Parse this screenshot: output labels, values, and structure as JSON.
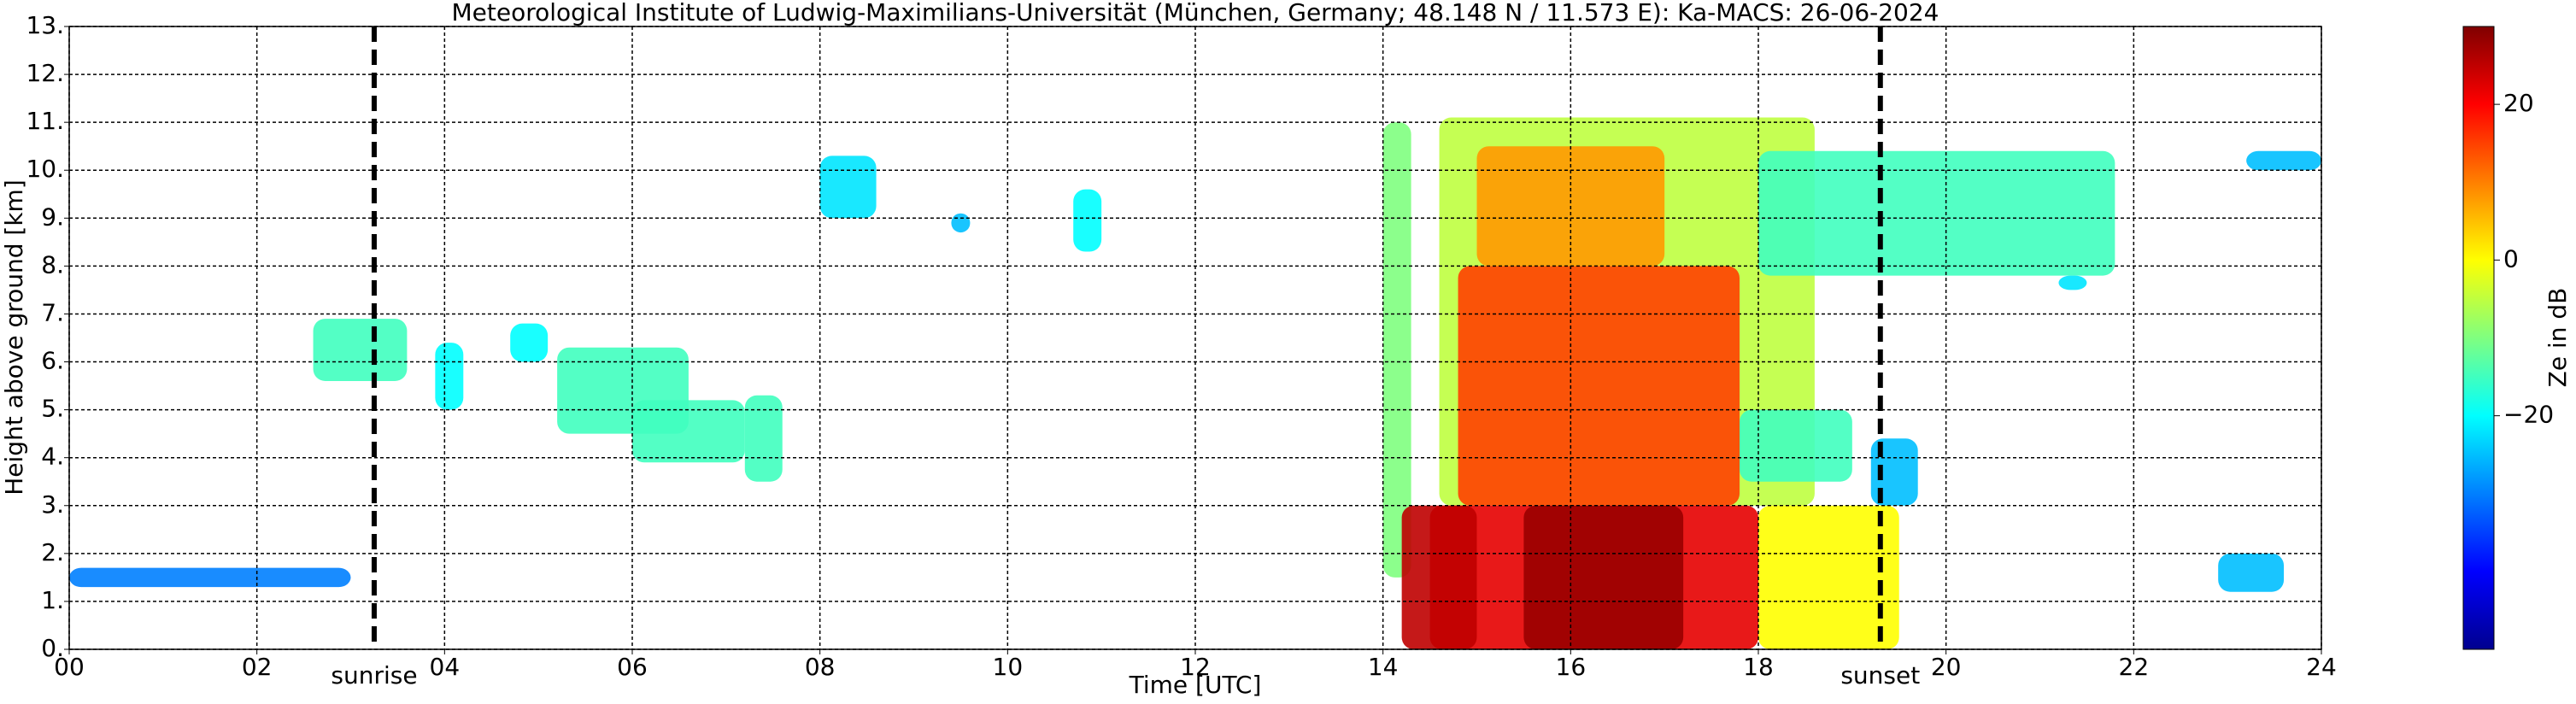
{
  "chart_data": {
    "type": "radar-timeheight",
    "title": "Meteorological Institute of Ludwig-Maximilians-Universität (München, Germany; 48.148 N / 11.573 E):    Ka-MACS: 26-06-2024",
    "xlabel": "Time [UTC]",
    "ylabel": "Height above ground [km]",
    "colorbar_label": "Ze in dB",
    "xlim": [
      0,
      24
    ],
    "xticks": [
      {
        "value": 0,
        "label": "00"
      },
      {
        "value": 2,
        "label": "02"
      },
      {
        "value": 4,
        "label": "04"
      },
      {
        "value": 6,
        "label": "06"
      },
      {
        "value": 8,
        "label": "08"
      },
      {
        "value": 10,
        "label": "10"
      },
      {
        "value": 12,
        "label": "12"
      },
      {
        "value": 14,
        "label": "14"
      },
      {
        "value": 16,
        "label": "16"
      },
      {
        "value": 18,
        "label": "18"
      },
      {
        "value": 20,
        "label": "20"
      },
      {
        "value": 22,
        "label": "22"
      },
      {
        "value": 24,
        "label": "24"
      }
    ],
    "ylim": [
      0,
      13
    ],
    "yticks": [
      {
        "value": 0,
        "label": "0."
      },
      {
        "value": 1,
        "label": "1."
      },
      {
        "value": 2,
        "label": "2."
      },
      {
        "value": 3,
        "label": "3."
      },
      {
        "value": 4,
        "label": "4."
      },
      {
        "value": 5,
        "label": "5."
      },
      {
        "value": 6,
        "label": "6."
      },
      {
        "value": 7,
        "label": "7."
      },
      {
        "value": 8,
        "label": "8."
      },
      {
        "value": 9,
        "label": "9."
      },
      {
        "value": 10,
        "label": "10."
      },
      {
        "value": 11,
        "label": "11."
      },
      {
        "value": 12,
        "label": "12."
      },
      {
        "value": 13,
        "label": "13."
      }
    ],
    "clim": [
      -50,
      30
    ],
    "cticks": [
      {
        "value": -20,
        "label": "−20"
      },
      {
        "value": 0,
        "label": "0"
      },
      {
        "value": 20,
        "label": "20"
      }
    ],
    "grid": true,
    "annotations": [
      {
        "text": "sunrise",
        "x": 3.25
      },
      {
        "text": "sunset",
        "x": 19.3
      }
    ],
    "echoes": [
      {
        "t0": 14.6,
        "t1": 18.6,
        "h0": 3.0,
        "h1": 11.1,
        "ze": -5
      },
      {
        "t0": 18.0,
        "t1": 21.8,
        "h0": 7.8,
        "h1": 10.4,
        "ze": -15
      },
      {
        "t0": 14.0,
        "t1": 14.3,
        "h0": 1.5,
        "h1": 11.0,
        "ze": -10
      },
      {
        "t0": 17.8,
        "t1": 19.0,
        "h0": 3.5,
        "h1": 5.0,
        "ze": -15
      },
      {
        "t0": 18.0,
        "t1": 19.5,
        "h0": 0.0,
        "h1": 3.0,
        "ze": 0
      },
      {
        "t0": 14.8,
        "t1": 17.8,
        "h0": 3.0,
        "h1": 8.0,
        "ze": 15
      },
      {
        "t0": 15.0,
        "t1": 17.0,
        "h0": 8.0,
        "h1": 10.5,
        "ze": 8
      },
      {
        "t0": 14.5,
        "t1": 18.0,
        "h0": 0.0,
        "h1": 3.0,
        "ze": 22
      },
      {
        "t0": 14.2,
        "t1": 15.0,
        "h0": 0.0,
        "h1": 3.0,
        "ze": 25
      },
      {
        "t0": 15.5,
        "t1": 17.2,
        "h0": 0.0,
        "h1": 3.0,
        "ze": 28
      },
      {
        "t0": 2.6,
        "t1": 3.6,
        "h0": 5.6,
        "h1": 6.9,
        "ze": -15
      },
      {
        "t0": 3.9,
        "t1": 4.2,
        "h0": 5.0,
        "h1": 6.4,
        "ze": -20
      },
      {
        "t0": 4.7,
        "t1": 5.1,
        "h0": 6.0,
        "h1": 6.8,
        "ze": -20
      },
      {
        "t0": 5.2,
        "t1": 6.6,
        "h0": 4.5,
        "h1": 6.3,
        "ze": -15
      },
      {
        "t0": 6.0,
        "t1": 7.2,
        "h0": 3.9,
        "h1": 5.2,
        "ze": -15
      },
      {
        "t0": 7.2,
        "t1": 7.6,
        "h0": 3.5,
        "h1": 5.3,
        "ze": -15
      },
      {
        "t0": 8.0,
        "t1": 8.6,
        "h0": 9.0,
        "h1": 10.3,
        "ze": -22
      },
      {
        "t0": 9.4,
        "t1": 9.6,
        "h0": 8.7,
        "h1": 9.1,
        "ze": -25
      },
      {
        "t0": 10.7,
        "t1": 11.0,
        "h0": 8.3,
        "h1": 9.6,
        "ze": -20
      },
      {
        "t0": 0.0,
        "t1": 3.0,
        "h0": 1.3,
        "h1": 1.7,
        "ze": -30
      },
      {
        "t0": 19.2,
        "t1": 19.7,
        "h0": 3.0,
        "h1": 4.4,
        "ze": -25
      },
      {
        "t0": 23.2,
        "t1": 24.0,
        "h0": 10.0,
        "h1": 10.4,
        "ze": -25
      },
      {
        "t0": 22.9,
        "t1": 23.6,
        "h0": 1.2,
        "h1": 2.0,
        "ze": -25
      },
      {
        "t0": 21.2,
        "t1": 21.5,
        "h0": 7.5,
        "h1": 7.8,
        "ze": -22
      }
    ]
  }
}
